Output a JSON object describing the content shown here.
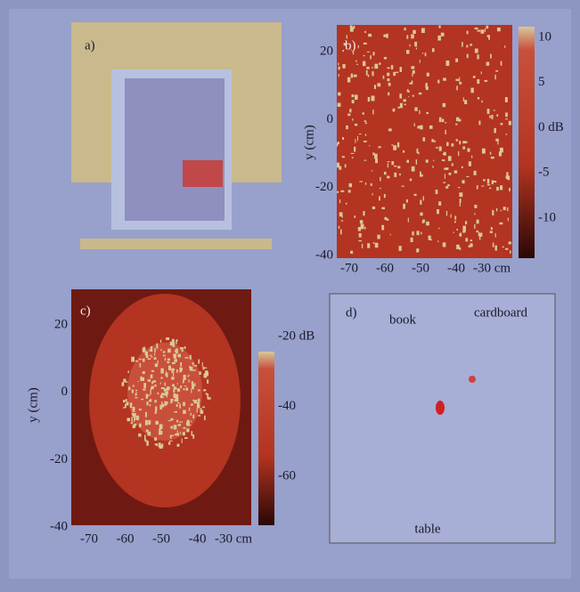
{
  "panel_a": {
    "label": "a)"
  },
  "panel_b": {
    "label": "b)",
    "y_axis_label": "y (cm)",
    "yticks": [
      "20",
      "0",
      "-20",
      "-40"
    ],
    "xticks": [
      "-70",
      "-60",
      "-50",
      "-40",
      "-30 cm"
    ],
    "colorbar_ticks": [
      "10",
      "5",
      "0 dB",
      "-5",
      "-10"
    ]
  },
  "panel_c": {
    "label": "c)",
    "y_axis_label": "y (cm)",
    "yticks": [
      "20",
      "0",
      "-20",
      "-40"
    ],
    "xticks": [
      "-70",
      "-60",
      "-50",
      "-40",
      "-30 cm"
    ],
    "colorbar_ticks": [
      "-20 dB",
      "-40",
      "-60"
    ]
  },
  "panel_d": {
    "label": "d)",
    "object_labels": [
      "book",
      "cardboard",
      "table"
    ]
  }
}
